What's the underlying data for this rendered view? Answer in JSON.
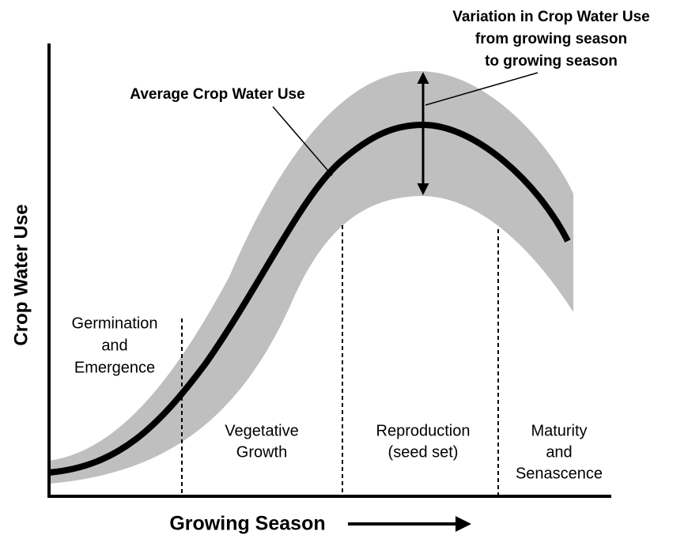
{
  "annotation": {
    "lines": [
      "Variation in Crop Water Use",
      "from growing season",
      "to growing season"
    ]
  },
  "mean_label": "Average Crop Water Use",
  "y_axis_label": "Crop Water Use",
  "x_axis_label": "Growing Season",
  "stages": [
    {
      "lines": [
        "Germination",
        "and",
        "Emergence"
      ]
    },
    {
      "lines": [
        "Vegetative",
        "Growth"
      ]
    },
    {
      "lines": [
        "Reproduction",
        "(seed set)"
      ]
    },
    {
      "lines": [
        "Maturity",
        "and",
        "Senascence"
      ]
    }
  ]
}
